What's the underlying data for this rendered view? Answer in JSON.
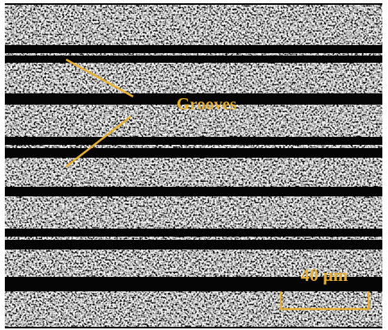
{
  "annotations": {
    "label": "Grooves",
    "scale_bar": "40 µm"
  }
}
